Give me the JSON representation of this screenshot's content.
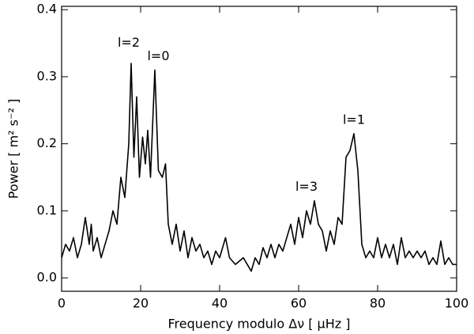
{
  "chart_data": {
    "type": "line",
    "xlabel": "Frequency modulo Δν [ μHz ]",
    "ylabel": "Power [ m² s⁻² ]",
    "xlim": [
      0,
      100
    ],
    "xticks": [
      0,
      20,
      40,
      60,
      80,
      100
    ],
    "ylim": [
      -0.02,
      0.405
    ],
    "yticks": [
      {
        "value": 0,
        "label": "0.0"
      },
      0.1,
      0.2,
      0.3,
      0.4
    ],
    "annotations": [
      {
        "text": "l=2",
        "x": 17,
        "y": 0.35
      },
      {
        "text": "l=0",
        "x": 24.5,
        "y": 0.33
      },
      {
        "text": "l=3",
        "x": 62,
        "y": 0.135
      },
      {
        "text": "l=1",
        "x": 74,
        "y": 0.235
      }
    ],
    "series": [
      {
        "color": "#000000",
        "x": [
          0,
          1,
          2,
          3,
          4,
          5,
          6,
          7,
          7.5,
          8,
          9,
          10,
          11,
          12,
          13,
          14,
          15,
          16,
          17,
          17.6,
          18.3,
          19,
          19.7,
          20.5,
          21.2,
          21.8,
          22.5,
          23.6,
          24.5,
          25.5,
          26.3,
          27,
          28,
          29,
          30,
          31,
          32,
          33,
          34,
          35,
          36,
          37,
          38,
          39,
          40,
          41.5,
          42.5,
          44,
          46,
          48,
          49,
          50,
          51,
          52,
          53,
          54,
          55,
          56,
          57,
          58,
          59,
          60,
          61,
          62,
          63,
          64,
          65,
          66,
          67,
          68,
          69,
          70,
          71,
          72,
          73,
          74,
          75,
          76,
          77,
          78,
          79,
          80,
          81,
          82,
          83,
          84,
          85,
          86,
          87,
          88,
          89,
          90,
          91,
          92,
          93,
          94,
          95,
          96,
          97,
          98,
          99,
          100
        ],
        "values": [
          0.03,
          0.05,
          0.04,
          0.06,
          0.03,
          0.05,
          0.09,
          0.05,
          0.08,
          0.04,
          0.06,
          0.03,
          0.05,
          0.07,
          0.1,
          0.08,
          0.15,
          0.12,
          0.2,
          0.32,
          0.18,
          0.27,
          0.15,
          0.21,
          0.17,
          0.22,
          0.15,
          0.31,
          0.16,
          0.15,
          0.17,
          0.08,
          0.05,
          0.08,
          0.04,
          0.07,
          0.03,
          0.06,
          0.04,
          0.05,
          0.03,
          0.04,
          0.02,
          0.04,
          0.03,
          0.06,
          0.03,
          0.02,
          0.03,
          0.01,
          0.03,
          0.02,
          0.045,
          0.03,
          0.05,
          0.03,
          0.05,
          0.04,
          0.06,
          0.08,
          0.05,
          0.09,
          0.06,
          0.1,
          0.08,
          0.115,
          0.08,
          0.07,
          0.04,
          0.07,
          0.05,
          0.09,
          0.08,
          0.18,
          0.19,
          0.215,
          0.16,
          0.05,
          0.03,
          0.04,
          0.03,
          0.06,
          0.03,
          0.05,
          0.03,
          0.05,
          0.02,
          0.06,
          0.03,
          0.04,
          0.03,
          0.04,
          0.03,
          0.04,
          0.02,
          0.03,
          0.02,
          0.055,
          0.02,
          0.03,
          0.02,
          0.02
        ]
      }
    ]
  }
}
